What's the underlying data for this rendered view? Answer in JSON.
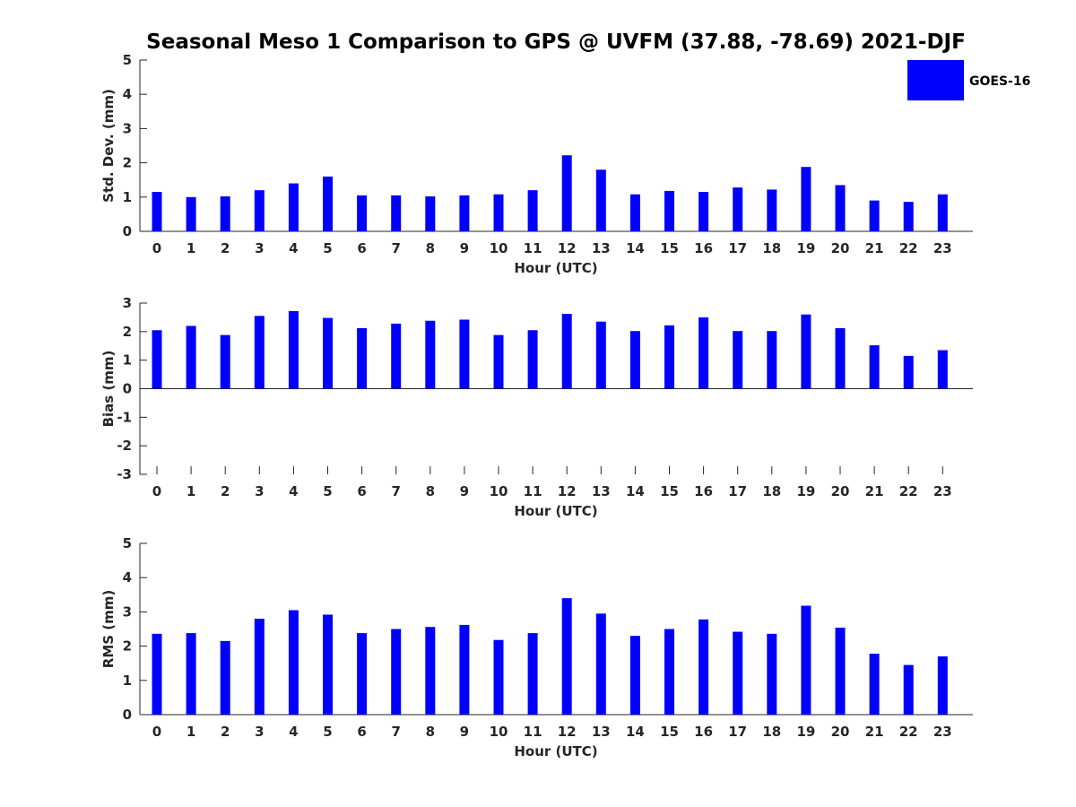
{
  "title": "Seasonal Meso 1 Comparison to GPS @ UVFM (37.88, -78.69) 2021-DJF",
  "legend": {
    "label": "GOES-16",
    "color": "#0000ff"
  },
  "chart_data": [
    {
      "type": "bar",
      "title": "",
      "xlabel": "Hour (UTC)",
      "ylabel": "Std. Dev. (mm)",
      "ylim": [
        0,
        5
      ],
      "yticks": [
        0,
        1,
        2,
        3,
        4,
        5
      ],
      "categories": [
        "0",
        "1",
        "2",
        "3",
        "4",
        "5",
        "6",
        "7",
        "8",
        "9",
        "10",
        "11",
        "12",
        "13",
        "14",
        "15",
        "16",
        "17",
        "18",
        "19",
        "20",
        "21",
        "22",
        "23"
      ],
      "series": [
        {
          "name": "GOES-16",
          "values": [
            1.15,
            1.0,
            1.02,
            1.2,
            1.4,
            1.6,
            1.05,
            1.05,
            1.02,
            1.05,
            1.08,
            1.2,
            2.22,
            1.8,
            1.08,
            1.18,
            1.15,
            1.28,
            1.22,
            1.88,
            1.35,
            0.9,
            0.86,
            1.08
          ]
        }
      ],
      "color": "#0000ff"
    },
    {
      "type": "bar",
      "title": "",
      "xlabel": "Hour (UTC)",
      "ylabel": "Bias (mm)",
      "ylim": [
        -3,
        3
      ],
      "yticks": [
        -3,
        -2,
        -1,
        0,
        1,
        2,
        3
      ],
      "categories": [
        "0",
        "1",
        "2",
        "3",
        "4",
        "5",
        "6",
        "7",
        "8",
        "9",
        "10",
        "11",
        "12",
        "13",
        "14",
        "15",
        "16",
        "17",
        "18",
        "19",
        "20",
        "21",
        "22",
        "23"
      ],
      "series": [
        {
          "name": "GOES-16",
          "values": [
            2.05,
            2.2,
            1.88,
            2.55,
            2.72,
            2.48,
            2.12,
            2.28,
            2.38,
            2.42,
            1.88,
            2.05,
            2.62,
            2.35,
            2.02,
            2.22,
            2.5,
            2.02,
            2.02,
            2.6,
            2.12,
            1.52,
            1.15,
            1.35
          ]
        }
      ],
      "color": "#0000ff"
    },
    {
      "type": "bar",
      "title": "",
      "xlabel": "Hour (UTC)",
      "ylabel": "RMS (mm)",
      "ylim": [
        0,
        5
      ],
      "yticks": [
        0,
        1,
        2,
        3,
        4,
        5
      ],
      "categories": [
        "0",
        "1",
        "2",
        "3",
        "4",
        "5",
        "6",
        "7",
        "8",
        "9",
        "10",
        "11",
        "12",
        "13",
        "14",
        "15",
        "16",
        "17",
        "18",
        "19",
        "20",
        "21",
        "22",
        "23"
      ],
      "series": [
        {
          "name": "GOES-16",
          "values": [
            2.36,
            2.38,
            2.15,
            2.8,
            3.05,
            2.92,
            2.38,
            2.5,
            2.56,
            2.62,
            2.18,
            2.38,
            3.4,
            2.95,
            2.3,
            2.5,
            2.78,
            2.42,
            2.36,
            3.18,
            2.54,
            1.78,
            1.45,
            1.7
          ]
        }
      ],
      "color": "#0000ff"
    }
  ]
}
